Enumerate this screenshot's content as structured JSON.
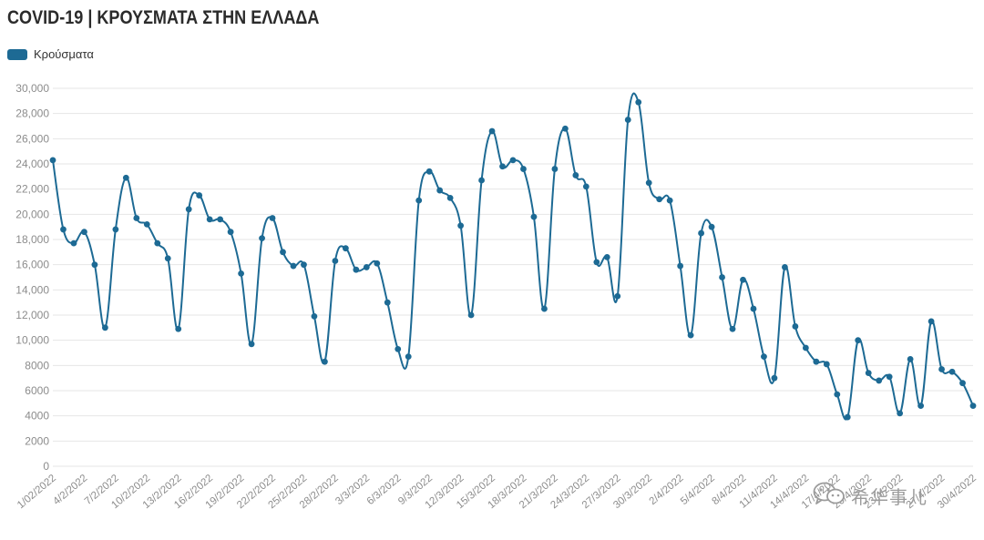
{
  "header": {
    "title": "COVID-19 | ΚΡΟΥΣΜΑΤΑ ΣΤΗΝ ΕΛΛΑΔΑ"
  },
  "watermark": {
    "text": "希华事儿",
    "icon": "wechat-icon"
  },
  "colors": {
    "series": "#1d6a94",
    "grid": "#e6e6e6",
    "tick": "#8c8c8c",
    "watermark": "#9c9c9c"
  },
  "chart_data": {
    "type": "line",
    "title": "COVID-19 | ΚΡΟΥΣΜΑΤΑ ΣΤΗΝ ΕΛΛΑΔΑ",
    "xlabel": "",
    "ylabel": "",
    "ylim": [
      0,
      30000
    ],
    "y_ticks": [
      "0",
      "2000",
      "4000",
      "6000",
      "8000",
      "10,000",
      "12,000",
      "14,000",
      "16,000",
      "18,000",
      "20,000",
      "22,000",
      "24,000",
      "26,000",
      "28,000",
      "30,000"
    ],
    "y_tick_values": [
      0,
      2000,
      4000,
      6000,
      8000,
      10000,
      12000,
      14000,
      16000,
      18000,
      20000,
      22000,
      24000,
      26000,
      28000,
      30000
    ],
    "x_tick_labels": [
      "1/02/2022",
      "4/2/2022",
      "7/2/2022",
      "10/2/2022",
      "13/2/2022",
      "16/2/2022",
      "19/2/2022",
      "22/2/2022",
      "25/2/2022",
      "28/2/2022",
      "3/3/2022",
      "6/3/2022",
      "9/3/2022",
      "12/3/2022",
      "15/3/2022",
      "18/3/2022",
      "21/3/2022",
      "24/3/2022",
      "27/3/2022",
      "30/3/2022",
      "2/4/2022",
      "5/4/2022",
      "8/4/2022",
      "11/4/2022",
      "14/4/2022",
      "17/4/2022",
      "20/4/2022",
      "23/4/2022",
      "27/4/2022",
      "30/4/2022"
    ],
    "x_tick_positions": [
      0,
      3,
      6,
      9,
      12,
      15,
      18,
      21,
      24,
      27,
      30,
      33,
      36,
      39,
      42,
      45,
      48,
      51,
      54,
      57,
      60,
      63,
      66,
      69,
      72,
      75,
      78,
      81,
      85,
      88
    ],
    "grid": true,
    "legend": "top-left",
    "series": [
      {
        "name": "Κρούσματα",
        "color": "#1d6a94",
        "values": [
          24300,
          18800,
          17700,
          18600,
          16000,
          11000,
          18800,
          22900,
          19700,
          19200,
          17700,
          16500,
          10900,
          20400,
          21500,
          19600,
          19600,
          18600,
          15300,
          9700,
          18100,
          19700,
          17000,
          15900,
          16000,
          11900,
          8300,
          16300,
          17300,
          15600,
          15800,
          16100,
          13000,
          9300,
          8700,
          21100,
          23400,
          21900,
          21300,
          19100,
          12000,
          22700,
          26600,
          23800,
          24300,
          23600,
          19800,
          12500,
          23600,
          26800,
          23100,
          22200,
          16200,
          16600,
          13500,
          27500,
          28900,
          22500,
          21200,
          21100,
          15900,
          10400,
          18500,
          19000,
          15000,
          10900,
          14800,
          12500,
          8700,
          7000,
          15800,
          11100,
          9400,
          8300,
          8100,
          5700,
          3900,
          10000,
          7400,
          6800,
          7100,
          4200,
          8500,
          4800,
          11500,
          7700,
          7500,
          6600,
          4800
        ]
      }
    ]
  }
}
